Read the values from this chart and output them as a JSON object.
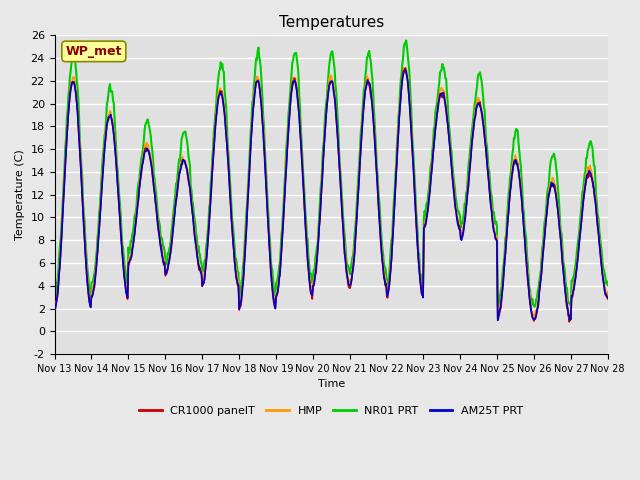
{
  "title": "Temperatures",
  "ylabel": "Temperature (C)",
  "xlabel": "Time",
  "ylim": [
    -2,
    26
  ],
  "background_color": "#e8e8e8",
  "plot_bg_color": "#e0e0e0",
  "grid_color": "#ffffff",
  "series": [
    {
      "label": "CR1000 panelT",
      "color": "#cc0000",
      "lw": 1.2,
      "zorder": 4
    },
    {
      "label": "HMP",
      "color": "#ff9900",
      "lw": 1.2,
      "zorder": 3
    },
    {
      "label": "NR01 PRT",
      "color": "#00cc00",
      "lw": 1.5,
      "zorder": 2
    },
    {
      "label": "AM25T PRT",
      "color": "#0000cc",
      "lw": 1.2,
      "zorder": 5
    }
  ],
  "yticks": [
    -2,
    0,
    2,
    4,
    6,
    8,
    10,
    12,
    14,
    16,
    18,
    20,
    22,
    24,
    26
  ],
  "xtick_labels": [
    "Nov 13",
    "Nov 14",
    "Nov 15",
    "Nov 16",
    "Nov 17",
    "Nov 18",
    "Nov 19",
    "Nov 20",
    "Nov 21",
    "Nov 22",
    "Nov 23",
    "Nov 24",
    "Nov 25",
    "Nov 26",
    "Nov 27",
    "Nov 28"
  ],
  "station_label": "WP_met",
  "station_label_color": "#880000",
  "station_label_bg": "#ffff99",
  "n_days": 15,
  "points_per_day": 48
}
